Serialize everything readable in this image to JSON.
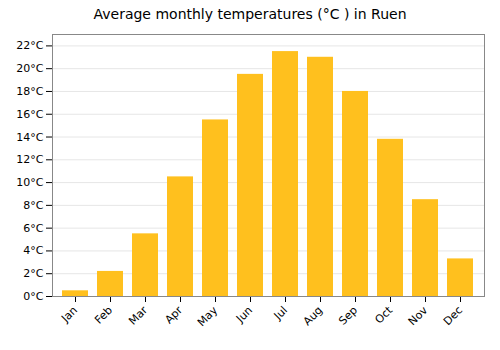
{
  "chart_data": {
    "type": "bar",
    "title": "Average monthly temperatures (°C ) in Ruen",
    "categories": [
      "Jan",
      "Feb",
      "Mar",
      "Apr",
      "May",
      "Jun",
      "Jul",
      "Aug",
      "Sep",
      "Oct",
      "Nov",
      "Dec"
    ],
    "values": [
      0.5,
      2.2,
      5.5,
      10.5,
      15.5,
      19.5,
      21.5,
      21.0,
      18.0,
      13.8,
      8.5,
      3.3
    ],
    "color": "#FFC01E",
    "ylim": [
      0,
      23
    ],
    "yticks": [
      {
        "value": 0,
        "label": "0°C"
      },
      {
        "value": 2,
        "label": "2°C"
      },
      {
        "value": 4,
        "label": "4°C"
      },
      {
        "value": 6,
        "label": "6°C"
      },
      {
        "value": 8,
        "label": "8°C"
      },
      {
        "value": 10,
        "label": "10°C"
      },
      {
        "value": 12,
        "label": "12°C"
      },
      {
        "value": 14,
        "label": "14°C"
      },
      {
        "value": 16,
        "label": "16°C"
      },
      {
        "value": 18,
        "label": "18°C"
      },
      {
        "value": 20,
        "label": "20°C"
      },
      {
        "value": 22,
        "label": "22°C"
      }
    ],
    "grid": true
  }
}
